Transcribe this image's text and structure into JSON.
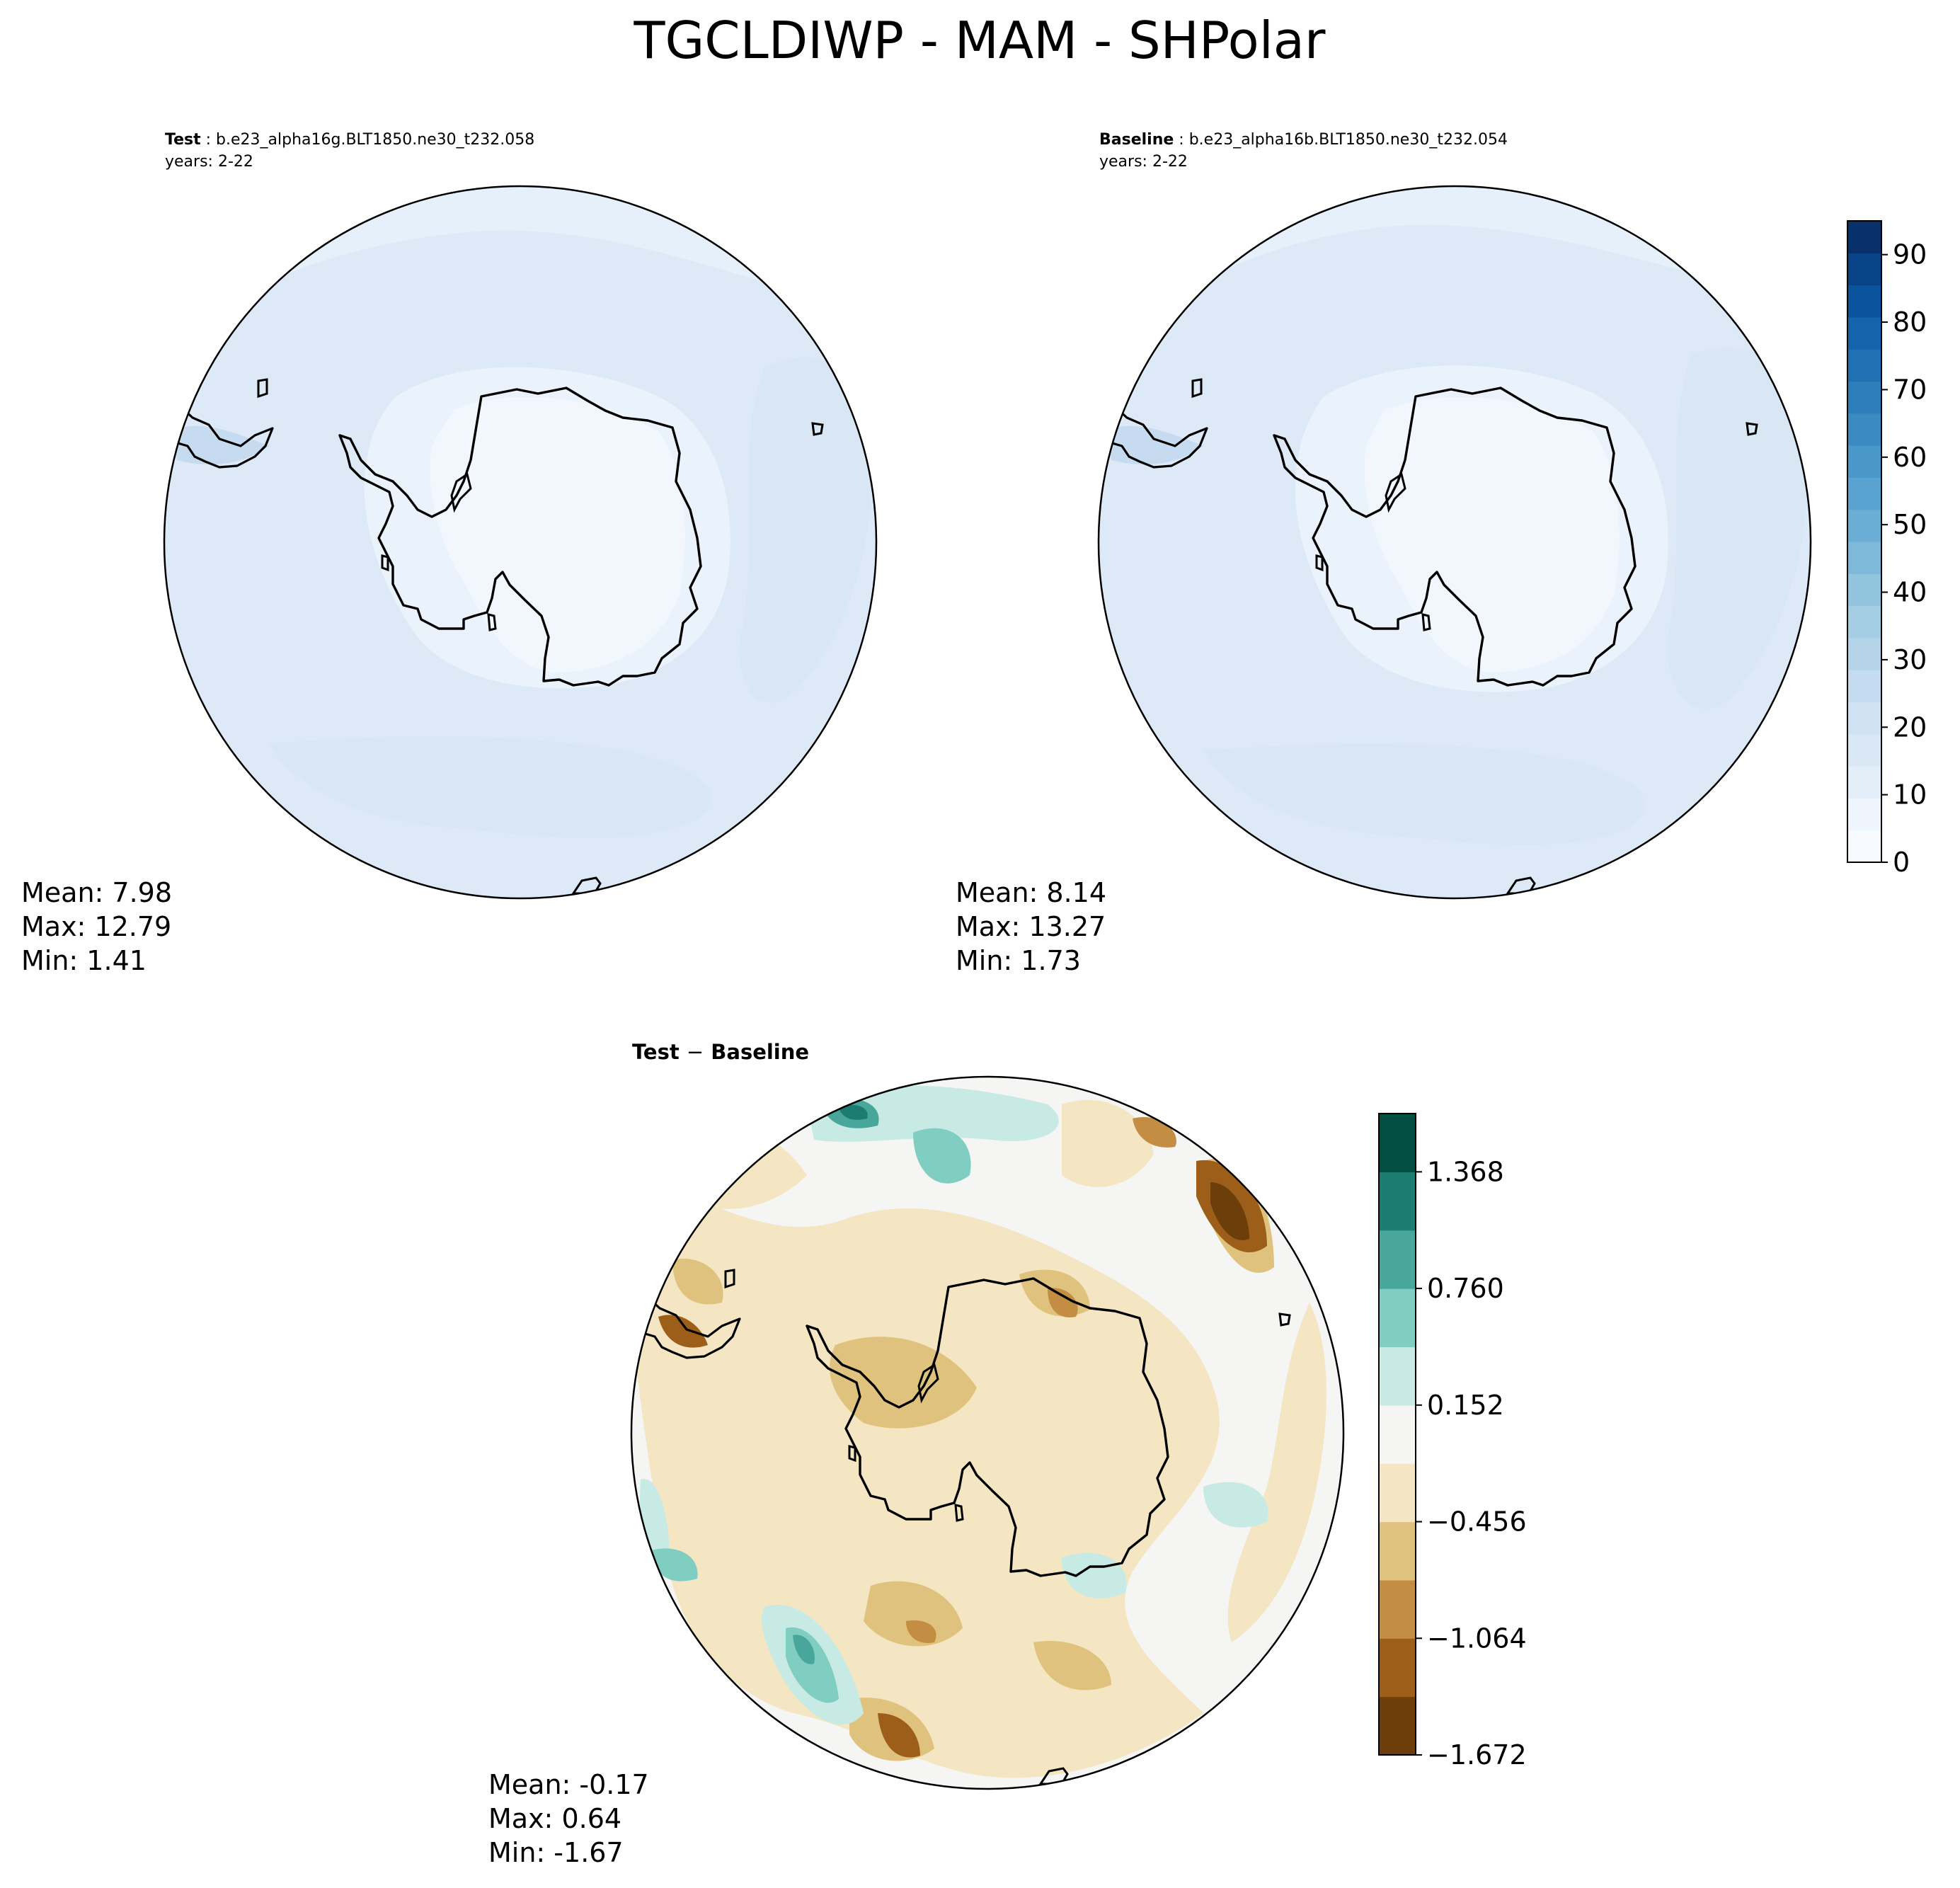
{
  "title": "TGCLDIWP - MAM - SHPolar",
  "panels": {
    "test": {
      "label": "Test",
      "case": "b.e23_alpha16g.BLT1850.ne30_t232.058",
      "years": "years: 2-22",
      "stats": {
        "mean": "Mean:  7.98",
        "max": "Max: 12.79",
        "min": "Min:  1.41"
      }
    },
    "baseline": {
      "label": "Baseline",
      "case": "b.e23_alpha16b.BLT1850.ne30_t232.054",
      "years": "years: 2-22",
      "stats": {
        "mean": "Mean:  8.14",
        "max": "Max: 13.27",
        "min": "Min:  1.73"
      }
    },
    "diff": {
      "label_test": "Test",
      "label_minus": "−",
      "label_baseline": "Baseline",
      "stats": {
        "mean": "Mean: -0.17",
        "max": "Max:  0.64",
        "min": "Min: -1.67"
      }
    }
  },
  "chart_data": [
    {
      "type": "heatmap",
      "name": "test-map",
      "projection": "south-polar-stereographic",
      "statistics": {
        "mean": 7.98,
        "max": 12.79,
        "min": 1.41
      }
    },
    {
      "type": "heatmap",
      "name": "baseline-map",
      "projection": "south-polar-stereographic",
      "statistics": {
        "mean": 8.14,
        "max": 13.27,
        "min": 1.73
      }
    },
    {
      "type": "heatmap",
      "name": "difference-map",
      "projection": "south-polar-stereographic",
      "statistics": {
        "mean": -0.17,
        "max": 0.64,
        "min": -1.67
      }
    }
  ],
  "colorbars": {
    "main": {
      "range": [
        0,
        95
      ],
      "tick_values": [
        0,
        10,
        20,
        30,
        40,
        50,
        60,
        70,
        80,
        90
      ],
      "tick_labels": [
        "0",
        "10",
        "20",
        "30",
        "40",
        "50",
        "60",
        "70",
        "80",
        "90"
      ],
      "colors": [
        "#f7fbff",
        "#eef5fc",
        "#e3eef9",
        "#dae8f6",
        "#cfe1f2",
        "#c5dbef",
        "#b5d4e9",
        "#a5cde3",
        "#92c4de",
        "#7fb9da",
        "#6aaed6",
        "#5aa2cf",
        "#4a98c9",
        "#3b8bc2",
        "#2e7ebc",
        "#2171b5",
        "#1563aa",
        "#0a549e",
        "#084387",
        "#08306b"
      ]
    },
    "diff": {
      "range": [
        -1.672,
        1.672
      ],
      "tick_values": [
        -1.672,
        -1.064,
        -0.456,
        0.152,
        0.76,
        1.368
      ],
      "tick_labels": [
        "−1.672",
        "−1.064",
        "−0.456",
        "0.152",
        "0.760",
        "1.368"
      ],
      "colors": [
        "#6b3e0a",
        "#9d5e19",
        "#c38e44",
        "#dfc27d",
        "#f4e6c3",
        "#f5f5f3",
        "#c7eae5",
        "#80cdc1",
        "#48a79a",
        "#1d7c72",
        "#024e41"
      ]
    }
  }
}
